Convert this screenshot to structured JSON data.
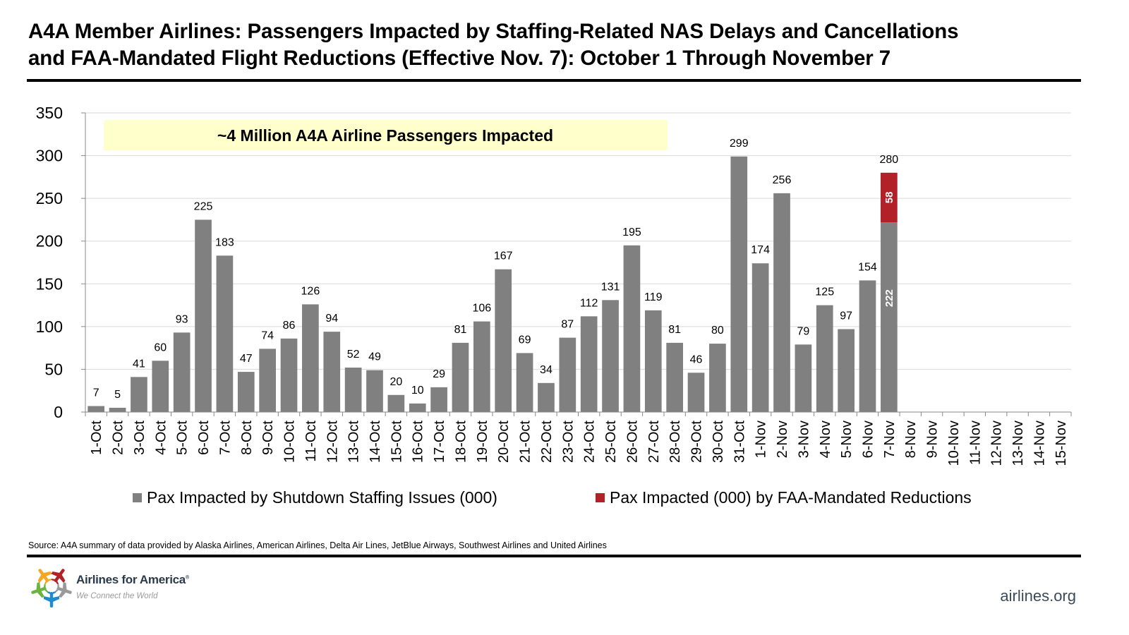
{
  "title_line1": "A4A Member Airlines: Passengers Impacted by Staffing-Related NAS Delays and Cancellations",
  "title_line2": "and FAA-Mandated Flight Reductions (Effective Nov. 7): October 1 Through November 7",
  "source": "Source: A4A summary of data provided by Alaska Airlines, American Airlines, Delta Air Lines, JetBlue Airways, Southwest Airlines and United Airlines",
  "logo": {
    "name": "Airlines for America",
    "registered": "®",
    "tagline": "We Connect the World",
    "icon": "star-of-airplanes-icon",
    "colors": [
      "#F5A623",
      "#B22028",
      "#6DB33F",
      "#999999",
      "#1C8BD0"
    ]
  },
  "website": "airlines.org",
  "colors": {
    "staffing": "#808080",
    "faa": "#B22028",
    "callout_bg": "#FFFFCC",
    "gridline": "#D9D9D9"
  },
  "chart_data": {
    "type": "bar",
    "stacked": true,
    "title": "A4A Member Airlines: Passengers Impacted by Staffing-Related NAS Delays and Cancellations and FAA-Mandated Flight Reductions (Effective Nov. 7): October 1 Through November 7",
    "xlabel": "",
    "ylabel": "",
    "ylim": [
      0,
      350
    ],
    "yticks": [
      0,
      50,
      100,
      150,
      200,
      250,
      300,
      350
    ],
    "grid": true,
    "legend_position": "bottom",
    "annotation": "~4 Million A4A Airline Passengers Impacted",
    "categories": [
      "1-Oct",
      "2-Oct",
      "3-Oct",
      "4-Oct",
      "5-Oct",
      "6-Oct",
      "7-Oct",
      "8-Oct",
      "9-Oct",
      "10-Oct",
      "11-Oct",
      "12-Oct",
      "13-Oct",
      "14-Oct",
      "15-Oct",
      "16-Oct",
      "17-Oct",
      "18-Oct",
      "19-Oct",
      "20-Oct",
      "21-Oct",
      "22-Oct",
      "23-Oct",
      "24-Oct",
      "25-Oct",
      "26-Oct",
      "27-Oct",
      "28-Oct",
      "29-Oct",
      "30-Oct",
      "31-Oct",
      "1-Nov",
      "2-Nov",
      "3-Nov",
      "4-Nov",
      "5-Nov",
      "6-Nov",
      "7-Nov",
      "8-Nov",
      "9-Nov",
      "10-Nov",
      "11-Nov",
      "12-Nov",
      "13-Nov",
      "14-Nov",
      "15-Nov"
    ],
    "series": [
      {
        "name": "Pax Impacted by Shutdown Staffing Issues (000)",
        "color": "#808080",
        "values": [
          7,
          5,
          41,
          60,
          93,
          225,
          183,
          47,
          74,
          86,
          126,
          94,
          52,
          49,
          20,
          10,
          29,
          81,
          106,
          167,
          69,
          34,
          87,
          112,
          131,
          195,
          119,
          81,
          46,
          80,
          299,
          174,
          256,
          79,
          125,
          97,
          154,
          222,
          null,
          null,
          null,
          null,
          null,
          null,
          null,
          null
        ]
      },
      {
        "name": "Pax Impacted (000) by FAA-Mandated Reductions",
        "color": "#B22028",
        "values": [
          null,
          null,
          null,
          null,
          null,
          null,
          null,
          null,
          null,
          null,
          null,
          null,
          null,
          null,
          null,
          null,
          null,
          null,
          null,
          null,
          null,
          null,
          null,
          null,
          null,
          null,
          null,
          null,
          null,
          null,
          null,
          null,
          null,
          null,
          null,
          null,
          null,
          58,
          null,
          null,
          null,
          null,
          null,
          null,
          null,
          null
        ]
      }
    ],
    "totals": [
      7,
      5,
      41,
      60,
      93,
      225,
      183,
      47,
      74,
      86,
      126,
      94,
      52,
      49,
      20,
      10,
      29,
      81,
      106,
      167,
      69,
      34,
      87,
      112,
      131,
      195,
      119,
      81,
      46,
      80,
      299,
      174,
      256,
      79,
      125,
      97,
      154,
      280,
      null,
      null,
      null,
      null,
      null,
      null,
      null,
      null
    ]
  }
}
